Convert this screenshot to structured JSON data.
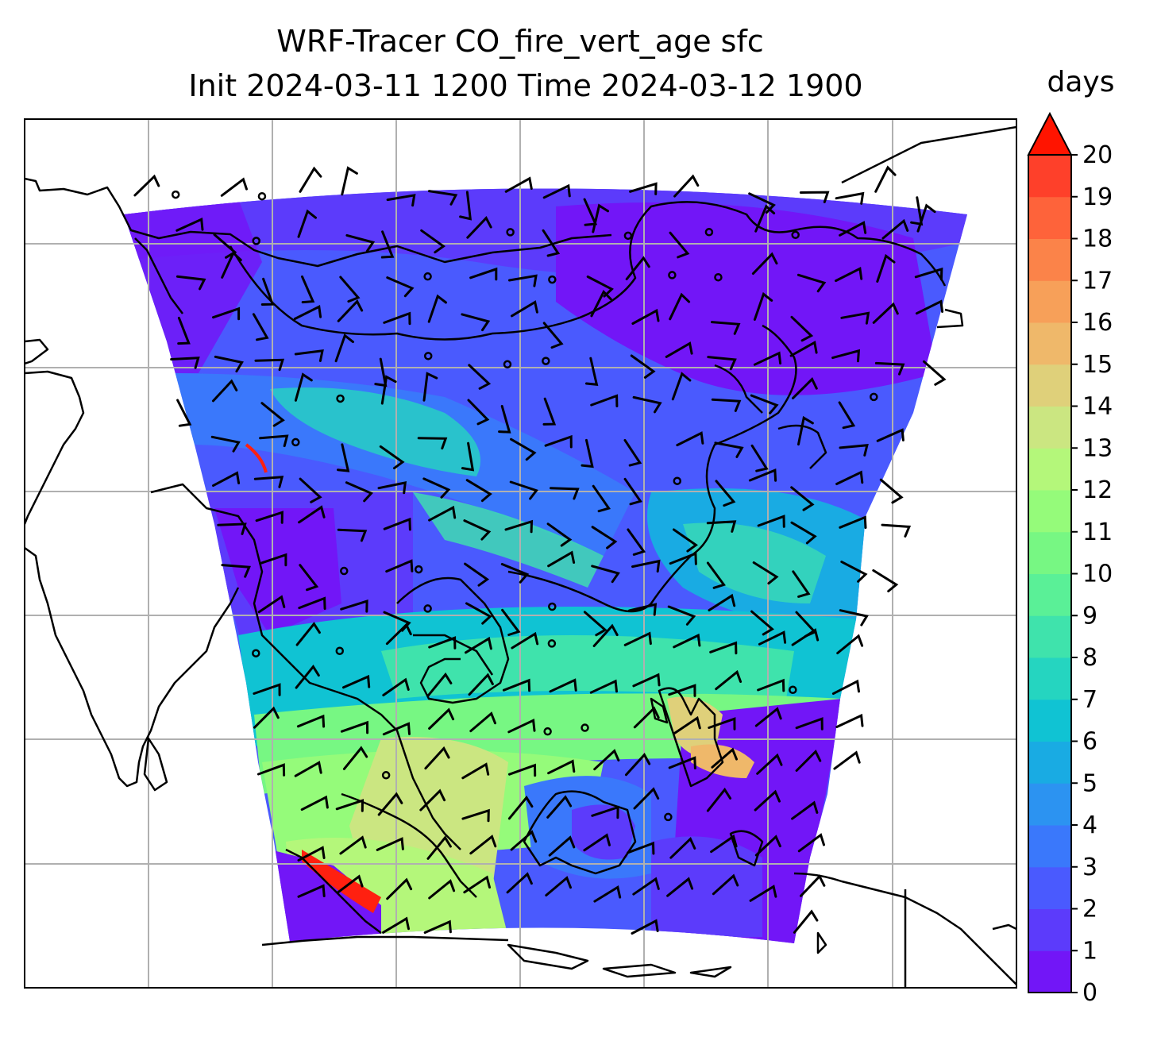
{
  "title": {
    "line1": "WRF-Tracer CO_fire_vert_age sfc",
    "line2": "Init 2024-03-11 1200 Time 2024-03-12 1900"
  },
  "colorbar": {
    "label": "days",
    "ticks": [
      "0",
      "1",
      "2",
      "3",
      "4",
      "5",
      "6",
      "7",
      "8",
      "9",
      "10",
      "11",
      "12",
      "13",
      "14",
      "15",
      "16",
      "17",
      "18",
      "19",
      "20"
    ],
    "extend": "max",
    "colors": [
      "#7216f7",
      "#5c3bfb",
      "#4a5afe",
      "#3a78fb",
      "#2c93f1",
      "#19abe3",
      "#10c3d3",
      "#25d5c0",
      "#3fe3ac",
      "#5af097",
      "#77f783",
      "#95fb7a",
      "#b4f77a",
      "#cbe681",
      "#dfd07a",
      "#efb86a",
      "#f7a059",
      "#fb8349",
      "#fe633a",
      "#fe402a",
      "#ff2010"
    ],
    "extend_color": "#ff1400"
  },
  "map": {
    "gridlines": true,
    "field_variable": "CO_fire_vert_age",
    "level": "sfc",
    "overlays": [
      "coastlines",
      "wind-barbs"
    ]
  }
}
